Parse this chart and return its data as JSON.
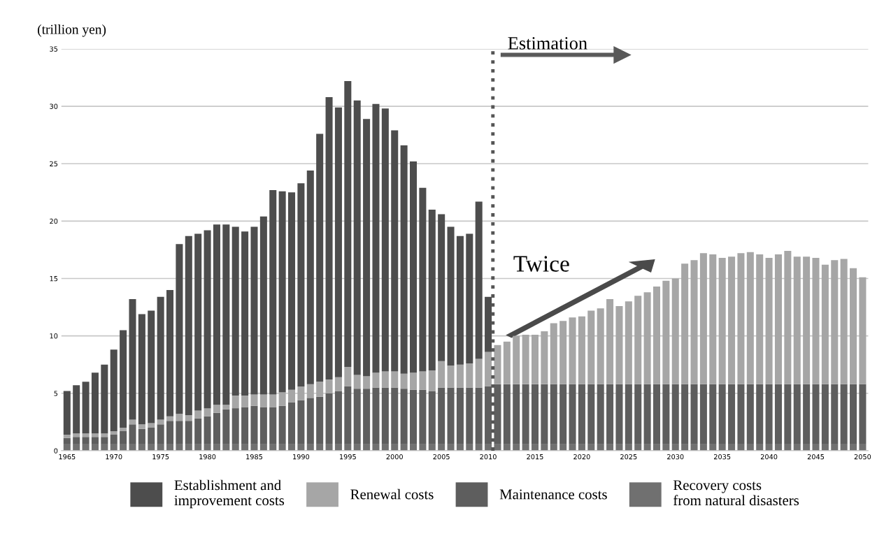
{
  "chart_data": {
    "type": "bar",
    "stacked": true,
    "ylabel": "(trillion yen)",
    "annotations": [
      "Estimation",
      "Twice"
    ],
    "x": [
      1965,
      1966,
      1967,
      1968,
      1969,
      1970,
      1971,
      1972,
      1973,
      1974,
      1975,
      1976,
      1977,
      1978,
      1979,
      1980,
      1981,
      1982,
      1983,
      1984,
      1985,
      1986,
      1987,
      1988,
      1989,
      1990,
      1991,
      1992,
      1993,
      1994,
      1995,
      1996,
      1997,
      1998,
      1999,
      2000,
      2001,
      2002,
      2003,
      2004,
      2005,
      2006,
      2007,
      2008,
      2009,
      2010,
      2011,
      2012,
      2013,
      2014,
      2015,
      2016,
      2017,
      2018,
      2019,
      2020,
      2021,
      2022,
      2023,
      2024,
      2025,
      2026,
      2027,
      2028,
      2029,
      2030,
      2031,
      2032,
      2033,
      2034,
      2035,
      2036,
      2037,
      2038,
      2039,
      2040,
      2041,
      2042,
      2043,
      2044,
      2045,
      2046,
      2047,
      2048,
      2049,
      2050
    ],
    "series": [
      {
        "name": "Recovery costs from natural disasters",
        "color": "#707070",
        "values": [
          0.6,
          0.6,
          0.6,
          0.6,
          0.6,
          0.6,
          0.6,
          0.6,
          0.6,
          0.6,
          0.6,
          0.6,
          0.6,
          0.6,
          0.6,
          0.6,
          0.6,
          0.6,
          0.6,
          0.6,
          0.6,
          0.6,
          0.6,
          0.6,
          0.6,
          0.6,
          0.6,
          0.6,
          0.6,
          0.6,
          0.6,
          0.6,
          0.6,
          0.6,
          0.6,
          0.6,
          0.6,
          0.6,
          0.6,
          0.6,
          0.6,
          0.6,
          0.6,
          0.6,
          0.6,
          0.6,
          0.6,
          0.6,
          0.6,
          0.6,
          0.6,
          0.6,
          0.6,
          0.6,
          0.6,
          0.6,
          0.6,
          0.6,
          0.6,
          0.6,
          0.6,
          0.6,
          0.6,
          0.6,
          0.6,
          0.6,
          0.6,
          0.6,
          0.6,
          0.6,
          0.6,
          0.6,
          0.6,
          0.6,
          0.6,
          0.6,
          0.6,
          0.6,
          0.6,
          0.6,
          0.6,
          0.6,
          0.6,
          0.6,
          0.6,
          0.6
        ]
      },
      {
        "name": "Maintenance costs",
        "color": "#5e5e5e",
        "values": [
          0.5,
          0.6,
          0.6,
          0.6,
          0.6,
          0.8,
          1.1,
          1.7,
          1.3,
          1.4,
          1.7,
          2.0,
          2.0,
          2.0,
          2.2,
          2.4,
          2.7,
          3.0,
          3.1,
          3.2,
          3.3,
          3.2,
          3.2,
          3.3,
          3.6,
          3.8,
          4.0,
          4.1,
          4.4,
          4.6,
          5.0,
          4.8,
          4.8,
          4.9,
          4.9,
          4.9,
          4.8,
          4.7,
          4.7,
          4.6,
          4.9,
          4.9,
          4.9,
          4.9,
          4.9,
          5.0,
          5.2,
          5.2,
          5.2,
          5.2,
          5.2,
          5.2,
          5.2,
          5.2,
          5.2,
          5.2,
          5.2,
          5.2,
          5.2,
          5.2,
          5.2,
          5.2,
          5.2,
          5.2,
          5.2,
          5.2,
          5.2,
          5.2,
          5.2,
          5.2,
          5.2,
          5.2,
          5.2,
          5.2,
          5.2,
          5.2,
          5.2,
          5.2,
          5.2,
          5.2,
          5.2,
          5.2,
          5.2,
          5.2,
          5.2,
          5.2
        ]
      },
      {
        "name": "Renewal costs",
        "color": "#a6a6a6",
        "values": [
          0.3,
          0.3,
          0.3,
          0.3,
          0.3,
          0.3,
          0.3,
          0.4,
          0.4,
          0.4,
          0.4,
          0.4,
          0.6,
          0.5,
          0.7,
          0.7,
          0.7,
          0.4,
          1.1,
          1.0,
          1.0,
          1.1,
          1.1,
          1.2,
          1.1,
          1.2,
          1.2,
          1.3,
          1.2,
          1.2,
          1.7,
          1.2,
          1.1,
          1.3,
          1.4,
          1.4,
          1.3,
          1.5,
          1.6,
          1.8,
          2.3,
          1.9,
          2.0,
          2.1,
          2.5,
          3.0,
          3.4,
          3.7,
          4.2,
          4.3,
          4.3,
          4.6,
          5.3,
          5.5,
          5.8,
          5.9,
          6.4,
          6.6,
          7.4,
          6.8,
          7.2,
          7.7,
          8.0,
          8.5,
          9.0,
          9.2,
          10.5,
          10.8,
          11.4,
          11.3,
          11.0,
          11.1,
          11.4,
          11.5,
          11.3,
          11.0,
          11.3,
          11.6,
          11.1,
          11.1,
          11.0,
          10.4,
          10.8,
          10.9,
          10.1,
          9.3
        ]
      },
      {
        "name": "Establishment and improvement costs",
        "color": "#4d4d4d",
        "values": [
          3.8,
          4.2,
          4.5,
          5.3,
          6.0,
          7.1,
          8.5,
          10.5,
          9.6,
          9.8,
          10.7,
          11.0,
          14.8,
          15.6,
          15.4,
          15.5,
          15.7,
          15.7,
          14.7,
          14.3,
          14.6,
          15.5,
          17.8,
          17.5,
          17.2,
          17.7,
          18.6,
          21.6,
          24.6,
          23.5,
          24.9,
          23.9,
          22.4,
          23.4,
          22.9,
          21.0,
          19.9,
          18.4,
          16.0,
          14.0,
          12.8,
          12.1,
          11.2,
          11.3,
          13.7,
          4.8,
          0,
          0,
          0,
          0,
          0,
          0,
          0,
          0,
          0,
          0,
          0,
          0,
          0,
          0,
          0,
          0,
          0,
          0,
          0,
          0,
          0,
          0,
          0,
          0,
          0,
          0,
          0,
          0,
          0,
          0,
          0,
          0,
          0,
          0,
          0,
          0,
          0,
          0,
          0,
          0
        ]
      }
    ],
    "xlim": [
      1964.4,
      2050.6
    ],
    "xticks": [
      1965,
      1970,
      1975,
      1980,
      1985,
      1990,
      1995,
      2000,
      2005,
      2010,
      2015,
      2020,
      2025,
      2030,
      2035,
      2040,
      2045,
      2050
    ],
    "ylim": [
      0,
      35
    ],
    "yticks": [
      0,
      5,
      10,
      15,
      20,
      25,
      30,
      35
    ],
    "ref_lines": [
      {
        "axis": "x",
        "value": 2010.5,
        "label": null,
        "color": "#555555",
        "line_style": "dotted"
      }
    ],
    "grid": "y",
    "legend": "bottom"
  }
}
